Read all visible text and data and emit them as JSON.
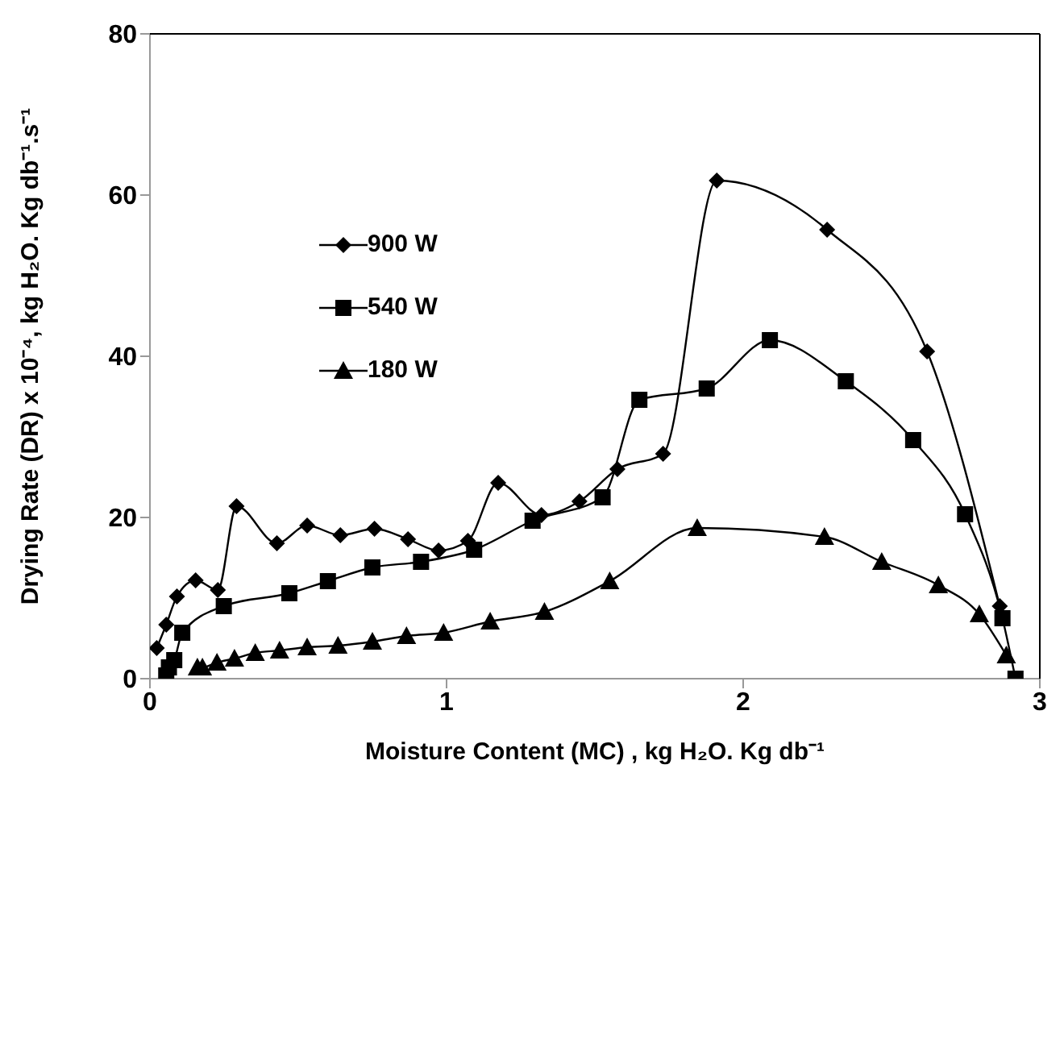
{
  "chart_data": {
    "type": "line",
    "xlabel": "Moisture Content (MC) , kg H₂O. Kg db⁻¹",
    "ylabel": "Drying Rate (DR) x 10⁻⁴, kg H₂O. Kg db⁻¹.s⁻¹",
    "xlim": [
      0,
      3
    ],
    "xticks": [
      0,
      1,
      2,
      3
    ],
    "ylim": [
      0,
      80
    ],
    "yticks": [
      0,
      20,
      40,
      60,
      80
    ],
    "grid": false,
    "legend": "top left",
    "line_style": "solid",
    "series": [
      {
        "name": "900 W",
        "color": "#000000",
        "marker": "diamond",
        "x": [
          0.023,
          0.055,
          0.091,
          0.154,
          0.229,
          0.292,
          0.428,
          0.53,
          0.642,
          0.757,
          0.87,
          0.973,
          1.072,
          1.174,
          1.32,
          1.448,
          1.576,
          1.73,
          1.911,
          2.283,
          2.62,
          2.865
        ],
        "values": [
          3.8,
          6.7,
          10.2,
          12.2,
          11.0,
          21.4,
          16.8,
          19.0,
          17.8,
          18.6,
          17.3,
          15.9,
          17.1,
          24.3,
          20.3,
          22.0,
          26.0,
          27.9,
          61.8,
          55.7,
          40.6,
          9.0
        ]
      },
      {
        "name": "540 W",
        "color": "#000000",
        "marker": "square",
        "x": [
          0.055,
          0.064,
          0.082,
          0.109,
          0.249,
          0.47,
          0.6,
          0.75,
          0.914,
          1.093,
          1.29,
          1.526,
          1.65,
          1.877,
          2.09,
          2.346,
          2.573,
          2.748,
          2.874,
          2.918
        ],
        "values": [
          0.4,
          1.4,
          2.3,
          5.7,
          9.0,
          10.6,
          12.1,
          13.8,
          14.5,
          16.0,
          19.6,
          22.5,
          34.6,
          36.0,
          42.0,
          36.9,
          29.6,
          20.4,
          7.5,
          0
        ]
      },
      {
        "name": "180 W",
        "color": "#000000",
        "marker": "triangle",
        "x": [
          0.16,
          0.177,
          0.226,
          0.285,
          0.355,
          0.437,
          0.53,
          0.634,
          0.75,
          0.865,
          0.99,
          1.147,
          1.33,
          1.55,
          1.845,
          2.274,
          2.467,
          2.658,
          2.796,
          2.887
        ],
        "values": [
          1.4,
          1.4,
          2.0,
          2.5,
          3.2,
          3.5,
          3.9,
          4.1,
          4.6,
          5.3,
          5.7,
          7.1,
          8.3,
          12.1,
          18.7,
          17.6,
          14.5,
          11.6,
          8.0,
          2.9
        ]
      }
    ]
  }
}
